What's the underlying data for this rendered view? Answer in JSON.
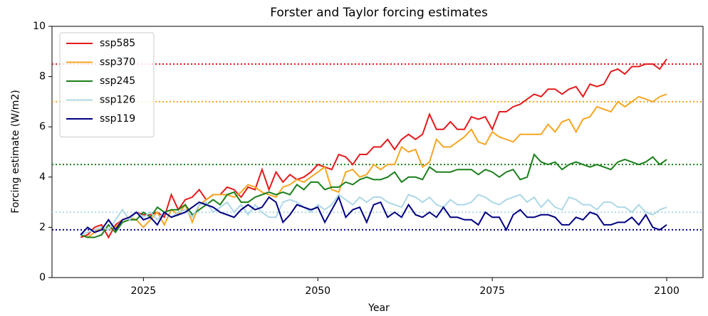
{
  "chart_data": {
    "type": "line",
    "title": "Forster and Taylor forcing estimates",
    "xlabel": "Year",
    "ylabel": "Forcing estimate (W/m2)",
    "xlim": [
      2011.9,
      2105.2
    ],
    "xticks": [
      2025,
      2050,
      2075,
      2100
    ],
    "ylim": [
      0,
      10
    ],
    "yticks": [
      0,
      2,
      4,
      6,
      8,
      10
    ],
    "grid": false,
    "legend": "upper left",
    "x": [
      2016,
      2017,
      2018,
      2019,
      2020,
      2021,
      2022,
      2023,
      2024,
      2025,
      2026,
      2027,
      2028,
      2029,
      2030,
      2031,
      2032,
      2033,
      2034,
      2035,
      2036,
      2037,
      2038,
      2039,
      2040,
      2041,
      2042,
      2043,
      2044,
      2045,
      2046,
      2047,
      2048,
      2049,
      2050,
      2051,
      2052,
      2053,
      2054,
      2055,
      2056,
      2057,
      2058,
      2059,
      2060,
      2061,
      2062,
      2063,
      2064,
      2065,
      2066,
      2067,
      2068,
      2069,
      2070,
      2071,
      2072,
      2073,
      2074,
      2075,
      2076,
      2077,
      2078,
      2079,
      2080,
      2081,
      2082,
      2083,
      2084,
      2085,
      2086,
      2087,
      2088,
      2089,
      2090,
      2091,
      2092,
      2093,
      2094,
      2095,
      2096,
      2097,
      2098,
      2099,
      2100
    ],
    "series": [
      {
        "name": "ssp585",
        "color": "#e41a1c",
        "values": [
          1.6,
          1.7,
          2.0,
          2.1,
          1.6,
          2.1,
          2.3,
          2.4,
          2.6,
          2.5,
          2.5,
          2.6,
          2.4,
          3.3,
          2.7,
          3.1,
          3.2,
          3.5,
          3.1,
          3.3,
          3.3,
          3.6,
          3.5,
          3.2,
          3.6,
          3.5,
          4.3,
          3.5,
          4.2,
          3.8,
          4.1,
          3.9,
          4.0,
          4.2,
          4.5,
          4.4,
          4.3,
          4.9,
          4.8,
          4.5,
          4.9,
          4.9,
          5.2,
          5.2,
          5.5,
          5.1,
          5.5,
          5.7,
          5.5,
          5.7,
          6.5,
          5.9,
          5.9,
          6.2,
          5.9,
          5.9,
          6.4,
          6.3,
          6.4,
          5.9,
          6.6,
          6.6,
          6.8,
          6.9,
          7.1,
          7.3,
          7.2,
          7.5,
          7.5,
          7.3,
          7.5,
          7.6,
          7.2,
          7.7,
          7.6,
          7.7,
          8.2,
          8.3,
          8.1,
          8.4,
          8.4,
          8.5,
          8.5,
          8.3,
          8.7
        ]
      },
      {
        "name": "ssp370",
        "color": "#f5a623",
        "values": [
          1.7,
          1.6,
          1.8,
          2.0,
          1.9,
          2.0,
          2.3,
          2.4,
          2.3,
          2.0,
          2.3,
          2.6,
          2.1,
          2.7,
          2.5,
          2.9,
          2.2,
          2.9,
          3.1,
          3.3,
          3.3,
          3.3,
          3.2,
          3.4,
          3.7,
          3.6,
          3.4,
          3.3,
          3.2,
          3.6,
          3.7,
          3.9,
          3.8,
          4.0,
          4.2,
          4.4,
          3.5,
          3.4,
          4.2,
          4.3,
          4.0,
          4.1,
          4.5,
          4.3,
          4.5,
          4.5,
          5.2,
          5.0,
          5.1,
          4.4,
          4.6,
          5.5,
          5.2,
          5.2,
          5.4,
          5.6,
          5.9,
          5.4,
          5.3,
          5.8,
          5.6,
          5.5,
          5.4,
          5.7,
          5.7,
          5.7,
          5.7,
          6.1,
          5.8,
          6.2,
          6.3,
          5.8,
          6.3,
          6.4,
          6.8,
          6.7,
          6.6,
          7.0,
          6.8,
          7.0,
          7.2,
          7.1,
          7.0,
          7.2,
          7.3
        ]
      },
      {
        "name": "ssp245",
        "color": "#1a7f1a",
        "values": [
          1.7,
          1.6,
          1.6,
          1.7,
          2.1,
          1.8,
          2.2,
          2.3,
          2.3,
          2.6,
          2.4,
          2.8,
          2.6,
          2.7,
          2.7,
          2.9,
          2.5,
          2.7,
          2.9,
          3.1,
          2.9,
          3.3,
          3.4,
          3.0,
          3.0,
          3.2,
          3.3,
          3.4,
          3.3,
          3.4,
          3.3,
          3.7,
          3.5,
          3.8,
          3.8,
          3.5,
          3.6,
          3.6,
          3.8,
          3.7,
          3.9,
          4.0,
          3.9,
          3.9,
          4.0,
          4.2,
          3.8,
          4.0,
          4.0,
          3.9,
          4.4,
          4.2,
          4.2,
          4.2,
          4.3,
          4.3,
          4.3,
          4.1,
          4.3,
          4.2,
          4.0,
          4.2,
          4.3,
          3.9,
          4.0,
          4.9,
          4.6,
          4.5,
          4.6,
          4.3,
          4.5,
          4.6,
          4.5,
          4.4,
          4.5,
          4.4,
          4.3,
          4.6,
          4.7,
          4.6,
          4.5,
          4.6,
          4.8,
          4.5,
          4.7
        ]
      },
      {
        "name": "ssp126",
        "color": "#add8e6",
        "values": [
          1.7,
          1.8,
          1.9,
          2.0,
          1.9,
          2.3,
          2.7,
          2.3,
          2.6,
          2.4,
          2.6,
          2.3,
          2.6,
          2.4,
          2.6,
          2.7,
          2.4,
          2.9,
          3.0,
          2.6,
          2.8,
          3.0,
          2.6,
          2.9,
          2.5,
          2.9,
          2.6,
          2.4,
          2.4,
          3.0,
          3.1,
          3.0,
          2.8,
          2.6,
          2.9,
          2.7,
          2.9,
          3.3,
          3.1,
          2.9,
          3.2,
          3.0,
          3.2,
          3.2,
          3.0,
          2.9,
          2.8,
          3.3,
          3.2,
          3.0,
          3.2,
          2.9,
          2.8,
          3.1,
          2.9,
          2.9,
          3.0,
          3.3,
          3.2,
          3.0,
          2.9,
          3.1,
          3.2,
          3.3,
          3.0,
          3.2,
          2.8,
          3.1,
          2.8,
          2.7,
          3.2,
          3.1,
          2.9,
          2.9,
          2.7,
          3.0,
          3.0,
          2.8,
          2.8,
          2.6,
          2.9,
          2.6,
          2.5,
          2.7,
          2.8
        ]
      },
      {
        "name": "ssp119",
        "color": "#000080",
        "values": [
          1.7,
          2.0,
          1.8,
          1.9,
          2.3,
          1.9,
          2.3,
          2.4,
          2.6,
          2.3,
          2.4,
          2.1,
          2.6,
          2.4,
          2.5,
          2.6,
          2.8,
          3.0,
          2.9,
          2.8,
          2.6,
          2.5,
          2.4,
          2.7,
          2.9,
          2.7,
          2.8,
          3.2,
          3.0,
          2.2,
          2.5,
          2.9,
          2.8,
          2.7,
          2.8,
          2.2,
          2.7,
          3.2,
          2.4,
          2.7,
          2.8,
          2.2,
          2.9,
          3.0,
          2.4,
          2.6,
          2.4,
          2.9,
          2.5,
          2.4,
          2.6,
          2.4,
          2.8,
          2.4,
          2.4,
          2.3,
          2.3,
          2.1,
          2.6,
          2.4,
          2.4,
          1.9,
          2.5,
          2.7,
          2.4,
          2.4,
          2.5,
          2.5,
          2.4,
          2.1,
          2.1,
          2.4,
          2.3,
          2.6,
          2.5,
          2.1,
          2.1,
          2.2,
          2.2,
          2.4,
          2.1,
          2.5,
          2.0,
          1.9,
          2.1
        ]
      }
    ],
    "reference_lines": [
      {
        "value": 8.5,
        "color": "#e41a1c"
      },
      {
        "value": 7.0,
        "color": "#f5a623"
      },
      {
        "value": 4.5,
        "color": "#1a7f1a"
      },
      {
        "value": 2.6,
        "color": "#add8e6"
      },
      {
        "value": 1.9,
        "color": "#000080"
      }
    ]
  }
}
